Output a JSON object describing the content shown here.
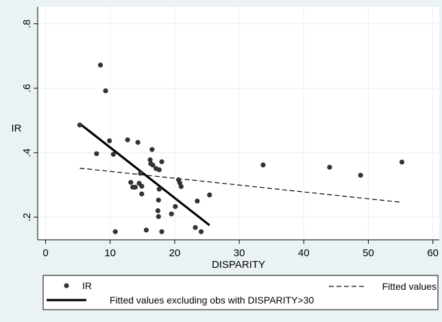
{
  "chart_data": {
    "type": "scatter",
    "xlabel": "DISPARITY",
    "ylabel": "IR",
    "xlim": [
      0,
      60
    ],
    "ylim": [
      0.2,
      0.8
    ],
    "x_ticks": [
      0,
      10,
      20,
      30,
      40,
      50,
      60
    ],
    "y_ticks": [
      0.2,
      0.4,
      0.6,
      0.8
    ],
    "y_tick_labels": [
      ".2",
      ".4",
      ".6",
      ".8"
    ],
    "grid": true,
    "colors": {
      "background": "#eaf2f3",
      "plot_background": "#ffffff",
      "grid": "#eaf2f3",
      "marker": "#333333",
      "line": "#000000"
    },
    "series": [
      {
        "name": "IR",
        "kind": "scatter",
        "points": [
          [
            5.3,
            0.486
          ],
          [
            7.9,
            0.397
          ],
          [
            8.5,
            0.672
          ],
          [
            9.3,
            0.592
          ],
          [
            9.9,
            0.437
          ],
          [
            10.5,
            0.395
          ],
          [
            10.8,
            0.155
          ],
          [
            12.7,
            0.44
          ],
          [
            13.2,
            0.308
          ],
          [
            13.5,
            0.293
          ],
          [
            13.9,
            0.293
          ],
          [
            14.3,
            0.432
          ],
          [
            14.5,
            0.305
          ],
          [
            14.7,
            0.336
          ],
          [
            14.9,
            0.296
          ],
          [
            14.9,
            0.272
          ],
          [
            15.6,
            0.16
          ],
          [
            16.2,
            0.378
          ],
          [
            16.3,
            0.366
          ],
          [
            16.5,
            0.41
          ],
          [
            16.6,
            0.362
          ],
          [
            17.1,
            0.351
          ],
          [
            17.4,
            0.22
          ],
          [
            17.5,
            0.202
          ],
          [
            17.5,
            0.253
          ],
          [
            17.6,
            0.347
          ],
          [
            17.6,
            0.287
          ],
          [
            18.0,
            0.372
          ],
          [
            18.0,
            0.155
          ],
          [
            19.5,
            0.21
          ],
          [
            20.1,
            0.233
          ],
          [
            20.6,
            0.316
          ],
          [
            20.8,
            0.306
          ],
          [
            21.0,
            0.295
          ],
          [
            23.2,
            0.168
          ],
          [
            23.5,
            0.25
          ],
          [
            24.1,
            0.155
          ],
          [
            25.4,
            0.269
          ],
          [
            33.7,
            0.362
          ],
          [
            44.0,
            0.355
          ],
          [
            48.8,
            0.33
          ],
          [
            55.2,
            0.371
          ]
        ]
      },
      {
        "name": "Fitted values",
        "kind": "line",
        "style": "dashed",
        "points": [
          [
            5.3,
            0.352
          ],
          [
            55.2,
            0.246
          ]
        ]
      },
      {
        "name": "Fitted values excluding obs with DISPARITY>30",
        "kind": "line",
        "style": "solid-thick",
        "points": [
          [
            5.3,
            0.49
          ],
          [
            25.4,
            0.175
          ]
        ]
      }
    ]
  }
}
